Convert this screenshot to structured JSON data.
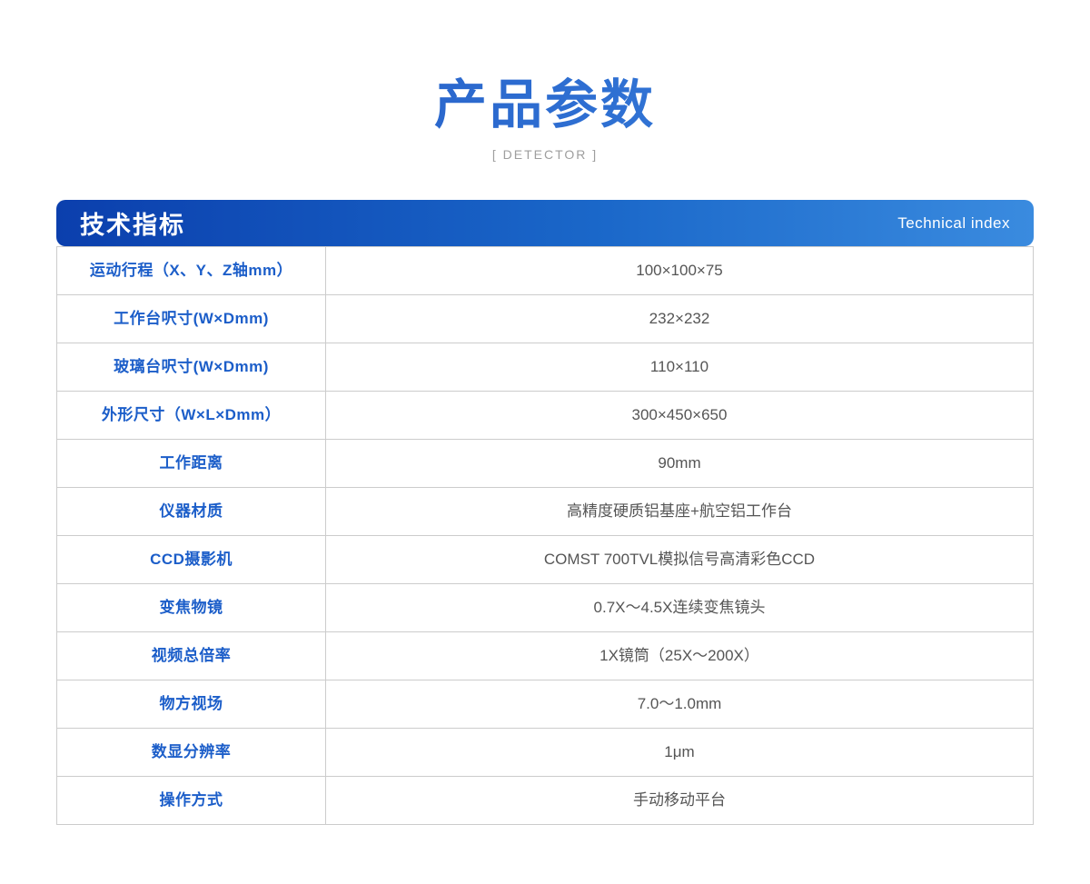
{
  "page": {
    "title": "产品参数",
    "subtitle": "[ DETECTOR ]"
  },
  "table": {
    "header": {
      "title_cn": "技术指标",
      "title_en": "Technical index"
    },
    "rows": [
      {
        "label": "运动行程（X、Y、Z轴mm）",
        "value": "100×100×75"
      },
      {
        "label": "工作台呎寸(W×Dmm)",
        "value": "232×232"
      },
      {
        "label": "玻璃台呎寸(W×Dmm)",
        "value": "110×110"
      },
      {
        "label": "外形尺寸（W×L×Dmm）",
        "value": "300×450×650"
      },
      {
        "label": "工作距离",
        "value": "90mm"
      },
      {
        "label": "仪器材质",
        "value": "高精度硬质铝基座+航空铝工作台"
      },
      {
        "label": "CCD摄影机",
        "value": "COMST 700TVL模拟信号高清彩色CCD"
      },
      {
        "label": "变焦物镜",
        "value": "0.7X～4.5X连续变焦镜头"
      },
      {
        "label": "视频总倍率",
        "value": "1X镜筒（25X～200X）"
      },
      {
        "label": "物方视场",
        "value": "7.0～1.0mm"
      },
      {
        "label": "数显分辨率",
        "value": "1μm"
      },
      {
        "label": "操作方式",
        "value": "手动移动平台"
      }
    ]
  },
  "colors": {
    "header_gradient_start": "#0b3fad",
    "header_gradient_end": "#3a8bdf",
    "title_gradient_start": "#2254c0",
    "title_gradient_end": "#3f8de2",
    "label_blue": "#1c5ec9",
    "value_gray": "#555555",
    "border_gray": "#cccccc",
    "subtitle_gray": "#9e9e9e"
  }
}
